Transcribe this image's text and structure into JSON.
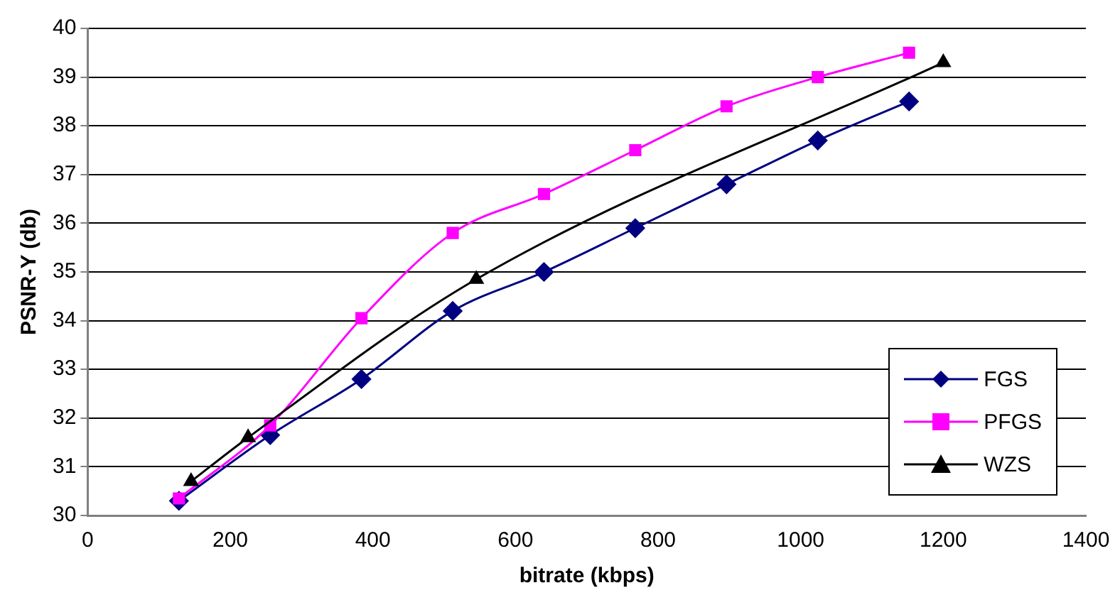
{
  "chart_data": {
    "type": "line",
    "xlabel": "bitrate (kbps)",
    "ylabel": "PSNR-Y (db)",
    "xlim": [
      0,
      1400
    ],
    "xticks": [
      0,
      200,
      400,
      600,
      800,
      1000,
      1200,
      1400
    ],
    "ylim": [
      30,
      40
    ],
    "yticks": [
      30,
      31,
      32,
      33,
      34,
      35,
      36,
      37,
      38,
      39,
      40
    ],
    "grid": "y",
    "legend": "bottom right",
    "series": [
      {
        "name": "FGS",
        "color": "#000080",
        "marker": "diamond",
        "x": [
          128,
          256,
          384,
          512,
          640,
          768,
          896,
          1024,
          1152
        ],
        "values": [
          30.3,
          31.65,
          32.8,
          34.2,
          35.0,
          35.9,
          36.8,
          37.7,
          38.5
        ]
      },
      {
        "name": "PFGS",
        "color": "#ff00ff",
        "marker": "square",
        "x": [
          128,
          256,
          384,
          512,
          640,
          768,
          896,
          1024,
          1152
        ],
        "values": [
          30.35,
          31.85,
          34.05,
          35.8,
          36.6,
          37.5,
          38.4,
          39.0,
          39.5
        ]
      },
      {
        "name": "WZS",
        "color": "#000000",
        "marker": "triangle",
        "x": [
          145,
          225,
          545,
          1200
        ],
        "values": [
          30.7,
          31.6,
          34.85,
          39.3
        ]
      }
    ]
  }
}
